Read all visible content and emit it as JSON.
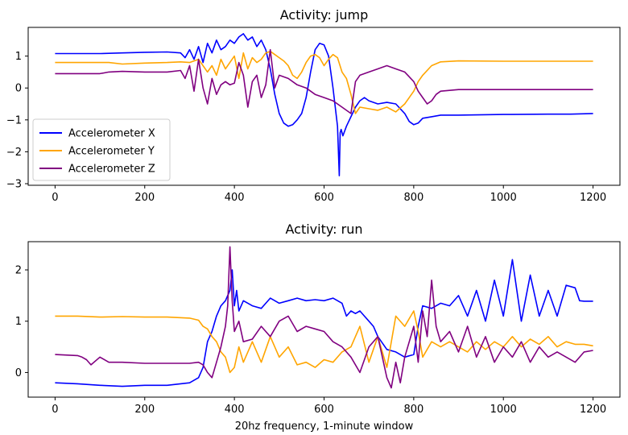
{
  "chart_data": [
    {
      "type": "line",
      "title": "Activity: jump",
      "xlabel": "",
      "ylabel": "",
      "xlim": [
        -60,
        1260
      ],
      "ylim": [
        -3.05,
        1.9
      ],
      "xticks": [
        0,
        200,
        400,
        600,
        800,
        1000,
        1200
      ],
      "yticks": [
        -3,
        -2,
        -1,
        0,
        1
      ],
      "grid": false,
      "legend_position": "lower-left",
      "series": [
        {
          "name": "Accelerometer X",
          "color": "#0000ff",
          "x": [
            0,
            50,
            100,
            150,
            200,
            250,
            280,
            290,
            300,
            310,
            320,
            330,
            340,
            350,
            360,
            370,
            380,
            390,
            400,
            410,
            420,
            430,
            440,
            450,
            460,
            470,
            480,
            490,
            500,
            510,
            520,
            530,
            540,
            550,
            560,
            570,
            580,
            590,
            600,
            610,
            620,
            625,
            630,
            634,
            636,
            638,
            642,
            650,
            660,
            670,
            680,
            690,
            700,
            720,
            740,
            760,
            780,
            790,
            800,
            810,
            820,
            840,
            860,
            900,
            1000,
            1100,
            1150,
            1200
          ],
          "y": [
            1.08,
            1.08,
            1.08,
            1.1,
            1.12,
            1.13,
            1.1,
            0.95,
            1.2,
            0.9,
            1.3,
            0.8,
            1.4,
            1.1,
            1.5,
            1.2,
            1.3,
            1.5,
            1.4,
            1.6,
            1.7,
            1.5,
            1.6,
            1.3,
            1.5,
            1.2,
            0.6,
            -0.2,
            -0.8,
            -1.1,
            -1.2,
            -1.15,
            -1.0,
            -0.8,
            -0.3,
            0.5,
            1.2,
            1.4,
            1.35,
            1.0,
            0.0,
            -0.6,
            -1.2,
            -2.75,
            -1.4,
            -1.3,
            -1.5,
            -1.2,
            -0.9,
            -0.6,
            -0.4,
            -0.3,
            -0.4,
            -0.5,
            -0.45,
            -0.5,
            -0.8,
            -1.05,
            -1.15,
            -1.1,
            -0.95,
            -0.9,
            -0.85,
            -0.85,
            -0.83,
            -0.82,
            -0.82,
            -0.8
          ]
        },
        {
          "name": "Accelerometer Y",
          "color": "#ffa500",
          "x": [
            0,
            50,
            100,
            120,
            150,
            200,
            250,
            280,
            300,
            320,
            340,
            350,
            360,
            370,
            380,
            400,
            410,
            420,
            430,
            440,
            450,
            460,
            470,
            480,
            490,
            500,
            510,
            520,
            530,
            540,
            550,
            560,
            570,
            580,
            590,
            600,
            610,
            620,
            630,
            640,
            650,
            660,
            670,
            680,
            700,
            720,
            740,
            760,
            780,
            800,
            810,
            820,
            840,
            860,
            900,
            1000,
            1100,
            1200
          ],
          "y": [
            0.8,
            0.8,
            0.8,
            0.8,
            0.75,
            0.78,
            0.8,
            0.82,
            0.8,
            0.9,
            0.5,
            0.7,
            0.4,
            0.9,
            0.6,
            1.0,
            0.3,
            1.1,
            0.6,
            0.95,
            0.8,
            0.9,
            1.1,
            1.15,
            1.05,
            0.95,
            0.85,
            0.7,
            0.4,
            0.3,
            0.5,
            0.8,
            1.0,
            1.05,
            0.95,
            0.7,
            0.9,
            1.05,
            0.95,
            0.5,
            0.3,
            -0.2,
            -0.8,
            -0.6,
            -0.65,
            -0.7,
            -0.6,
            -0.75,
            -0.5,
            -0.1,
            0.2,
            0.4,
            0.7,
            0.82,
            0.85,
            0.84,
            0.84,
            0.84
          ]
        },
        {
          "name": "Accelerometer Z",
          "color": "#800080",
          "x": [
            0,
            50,
            100,
            120,
            150,
            200,
            250,
            280,
            290,
            300,
            310,
            320,
            330,
            340,
            350,
            360,
            370,
            380,
            390,
            400,
            410,
            420,
            430,
            440,
            450,
            460,
            470,
            480,
            490,
            500,
            520,
            540,
            560,
            580,
            600,
            620,
            640,
            660,
            670,
            680,
            700,
            720,
            740,
            760,
            780,
            800,
            810,
            820,
            830,
            840,
            850,
            860,
            900,
            1000,
            1100,
            1200
          ],
          "y": [
            0.45,
            0.45,
            0.45,
            0.5,
            0.52,
            0.5,
            0.5,
            0.55,
            0.3,
            0.7,
            -0.1,
            0.9,
            0.0,
            -0.5,
            0.3,
            -0.2,
            0.1,
            0.2,
            0.1,
            0.15,
            0.8,
            0.4,
            -0.6,
            0.2,
            0.4,
            -0.3,
            0.1,
            1.2,
            0.0,
            0.4,
            0.3,
            0.1,
            0.0,
            -0.2,
            -0.3,
            -0.4,
            -0.6,
            -0.8,
            0.2,
            0.4,
            0.5,
            0.6,
            0.7,
            0.6,
            0.5,
            0.2,
            -0.1,
            -0.3,
            -0.5,
            -0.4,
            -0.2,
            -0.1,
            -0.05,
            -0.05,
            -0.05,
            -0.05
          ]
        }
      ]
    },
    {
      "type": "line",
      "title": "Activity: run",
      "xlabel": "20hz frequency, 1-minute window",
      "ylabel": "",
      "xlim": [
        -60,
        1260
      ],
      "ylim": [
        -0.48,
        2.55
      ],
      "xticks": [
        0,
        200,
        400,
        600,
        800,
        1000,
        1200
      ],
      "yticks": [
        0,
        1,
        2
      ],
      "grid": false,
      "series": [
        {
          "name": "Accelerometer X",
          "color": "#0000ff",
          "x": [
            0,
            50,
            100,
            150,
            200,
            250,
            300,
            320,
            330,
            340,
            350,
            360,
            370,
            380,
            390,
            395,
            400,
            405,
            410,
            420,
            440,
            460,
            480,
            500,
            520,
            540,
            560,
            580,
            600,
            620,
            640,
            650,
            660,
            670,
            680,
            690,
            700,
            710,
            720,
            740,
            760,
            780,
            800,
            810,
            820,
            840,
            860,
            880,
            900,
            920,
            940,
            960,
            980,
            1000,
            1020,
            1040,
            1060,
            1080,
            1100,
            1120,
            1140,
            1160,
            1170,
            1180,
            1200
          ],
          "y": [
            -0.2,
            -0.22,
            -0.25,
            -0.27,
            -0.25,
            -0.25,
            -0.2,
            -0.1,
            0.1,
            0.6,
            0.8,
            1.1,
            1.3,
            1.4,
            1.6,
            2.0,
            1.3,
            1.6,
            1.2,
            1.4,
            1.3,
            1.25,
            1.45,
            1.35,
            1.4,
            1.45,
            1.4,
            1.42,
            1.4,
            1.45,
            1.35,
            1.1,
            1.2,
            1.15,
            1.2,
            1.1,
            1.0,
            0.9,
            0.7,
            0.45,
            0.4,
            0.3,
            0.35,
            0.9,
            1.3,
            1.25,
            1.35,
            1.3,
            1.5,
            1.1,
            1.6,
            1.0,
            1.8,
            1.1,
            2.2,
            1.0,
            1.9,
            1.1,
            1.6,
            1.1,
            1.7,
            1.65,
            1.4,
            1.39,
            1.39
          ]
        },
        {
          "name": "Accelerometer Y",
          "color": "#ffa500",
          "x": [
            0,
            50,
            100,
            150,
            200,
            250,
            300,
            320,
            330,
            340,
            350,
            360,
            370,
            380,
            390,
            400,
            410,
            420,
            440,
            460,
            480,
            500,
            520,
            540,
            560,
            580,
            600,
            620,
            640,
            660,
            680,
            700,
            720,
            740,
            760,
            780,
            800,
            810,
            820,
            840,
            860,
            880,
            900,
            920,
            940,
            960,
            980,
            1000,
            1020,
            1040,
            1060,
            1080,
            1100,
            1120,
            1140,
            1160,
            1180,
            1200
          ],
          "y": [
            1.1,
            1.1,
            1.08,
            1.09,
            1.08,
            1.08,
            1.06,
            1.02,
            0.9,
            0.85,
            0.7,
            0.6,
            0.4,
            0.3,
            0.0,
            0.1,
            0.5,
            0.2,
            0.6,
            0.2,
            0.7,
            0.3,
            0.5,
            0.15,
            0.2,
            0.1,
            0.25,
            0.2,
            0.4,
            0.5,
            0.9,
            0.2,
            0.7,
            0.1,
            1.1,
            0.9,
            1.2,
            0.8,
            0.3,
            0.6,
            0.5,
            0.6,
            0.5,
            0.4,
            0.6,
            0.45,
            0.6,
            0.5,
            0.7,
            0.5,
            0.65,
            0.55,
            0.7,
            0.5,
            0.6,
            0.55,
            0.55,
            0.52
          ]
        },
        {
          "name": "Accelerometer Z",
          "color": "#800080",
          "x": [
            0,
            50,
            60,
            70,
            80,
            100,
            120,
            150,
            200,
            250,
            300,
            320,
            330,
            340,
            350,
            360,
            370,
            380,
            385,
            390,
            395,
            400,
            410,
            420,
            440,
            460,
            480,
            500,
            520,
            540,
            560,
            580,
            600,
            620,
            640,
            660,
            680,
            700,
            720,
            740,
            750,
            760,
            770,
            780,
            800,
            810,
            820,
            830,
            840,
            850,
            860,
            880,
            900,
            920,
            940,
            960,
            980,
            1000,
            1020,
            1040,
            1060,
            1080,
            1100,
            1120,
            1140,
            1160,
            1180,
            1200
          ],
          "y": [
            0.35,
            0.33,
            0.3,
            0.25,
            0.15,
            0.3,
            0.2,
            0.2,
            0.18,
            0.18,
            0.18,
            0.2,
            0.15,
            0.0,
            -0.1,
            0.2,
            0.5,
            0.9,
            1.3,
            2.45,
            1.4,
            0.8,
            1.0,
            0.6,
            0.65,
            0.9,
            0.7,
            1.0,
            1.1,
            0.8,
            0.9,
            0.85,
            0.8,
            0.6,
            0.5,
            0.3,
            0.0,
            0.5,
            0.7,
            -0.1,
            -0.3,
            0.2,
            -0.2,
            0.3,
            0.9,
            0.2,
            1.2,
            0.7,
            1.8,
            0.9,
            0.6,
            0.8,
            0.4,
            0.9,
            0.3,
            0.7,
            0.2,
            0.5,
            0.3,
            0.6,
            0.2,
            0.5,
            0.3,
            0.4,
            0.3,
            0.2,
            0.4,
            0.43
          ]
        }
      ]
    }
  ]
}
